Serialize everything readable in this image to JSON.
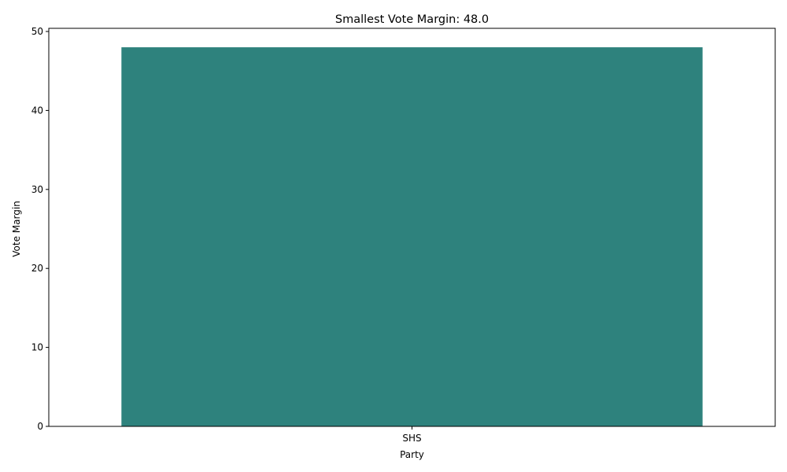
{
  "chart_data": {
    "type": "bar",
    "title": "Smallest Vote Margin: 48.0",
    "xlabel": "Party",
    "ylabel": "Vote Margin",
    "categories": [
      "SHS"
    ],
    "values": [
      48.0
    ],
    "ylim": [
      0,
      50.4
    ],
    "yticks": [
      0,
      10,
      20,
      30,
      40,
      50
    ],
    "grid": false,
    "legend": "none",
    "bar_color": "#2e827d"
  }
}
